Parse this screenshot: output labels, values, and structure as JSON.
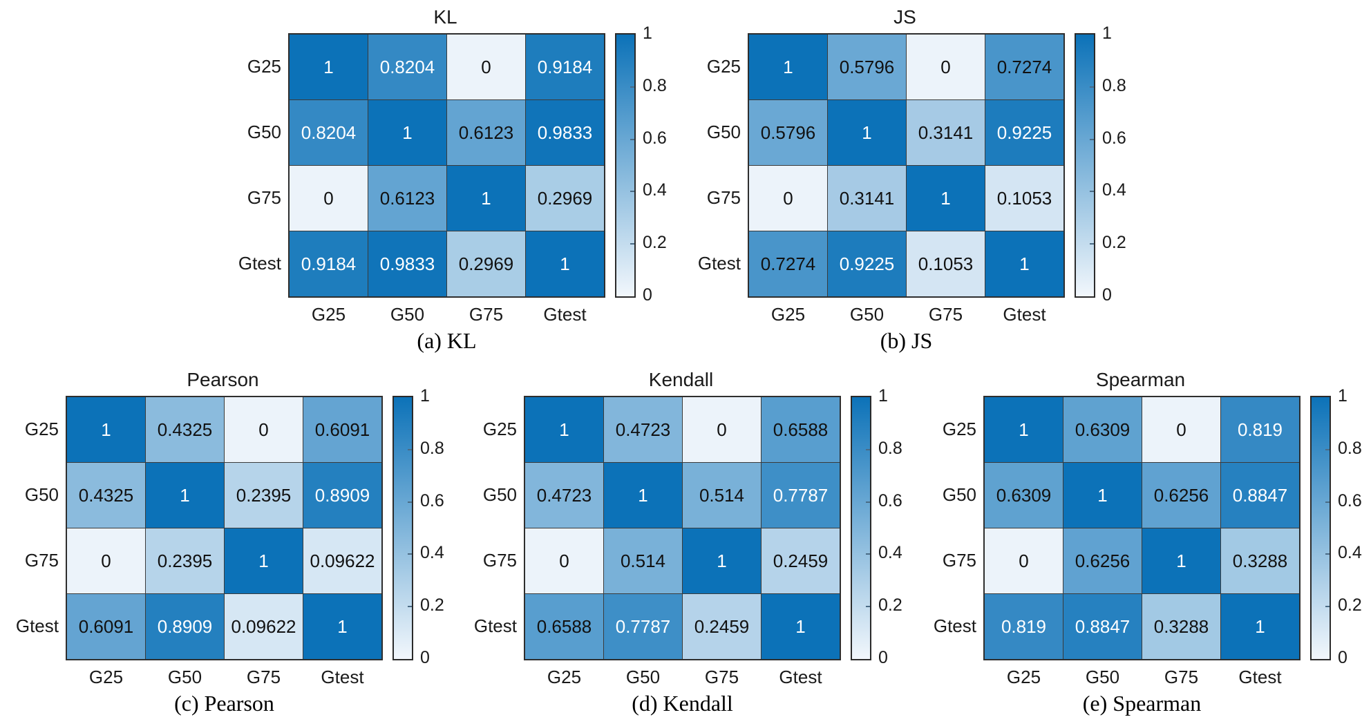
{
  "figure": {
    "background": "#ffffff",
    "description": "Five 4x4 similarity heatmaps comparing distributions G25, G50, G75, Gtest"
  },
  "colors": {
    "cmap_high": "#0c72b8",
    "cmap_low": "#ecf3fa",
    "grid_line": "#2e2e2e",
    "cell_text_dark": "#111111",
    "cell_text_light": "#ffffff",
    "label_text": "#1a1a1a"
  },
  "colorbar": {
    "min": 0,
    "max": 1,
    "tick_labels": [
      "1",
      "0.8",
      "0.6",
      "0.4",
      "0.2",
      "0"
    ],
    "tick_values": [
      1,
      0.8,
      0.6,
      0.4,
      0.2,
      0
    ],
    "position": "right"
  },
  "categories": [
    "G25",
    "G50",
    "G75",
    "Gtest"
  ],
  "chart_data": [
    {
      "type": "heatmap",
      "title": "KL",
      "caption": "(a) KL",
      "x_categories": [
        "G25",
        "G50",
        "G75",
        "Gtest"
      ],
      "y_categories": [
        "G25",
        "G50",
        "G75",
        "Gtest"
      ],
      "values": [
        [
          1,
          0.8204,
          0,
          0.9184
        ],
        [
          0.8204,
          1,
          0.6123,
          0.9833
        ],
        [
          0,
          0.6123,
          1,
          0.2969
        ],
        [
          0.9184,
          0.9833,
          0.2969,
          1
        ]
      ],
      "value_range": [
        0,
        1
      ],
      "colorbar": "right"
    },
    {
      "type": "heatmap",
      "title": "JS",
      "caption": "(b) JS",
      "x_categories": [
        "G25",
        "G50",
        "G75",
        "Gtest"
      ],
      "y_categories": [
        "G25",
        "G50",
        "G75",
        "Gtest"
      ],
      "values": [
        [
          1,
          0.5796,
          0,
          0.7274
        ],
        [
          0.5796,
          1,
          0.3141,
          0.9225
        ],
        [
          0,
          0.3141,
          1,
          0.1053
        ],
        [
          0.7274,
          0.9225,
          0.1053,
          1
        ]
      ],
      "value_range": [
        0,
        1
      ],
      "colorbar": "right"
    },
    {
      "type": "heatmap",
      "title": "Pearson",
      "caption": "(c) Pearson",
      "x_categories": [
        "G25",
        "G50",
        "G75",
        "Gtest"
      ],
      "y_categories": [
        "G25",
        "G50",
        "G75",
        "Gtest"
      ],
      "values": [
        [
          1,
          0.4325,
          0,
          0.6091
        ],
        [
          0.4325,
          1,
          0.2395,
          0.8909
        ],
        [
          0,
          0.2395,
          1,
          0.09622
        ],
        [
          0.6091,
          0.8909,
          0.09622,
          1
        ]
      ],
      "value_range": [
        0,
        1
      ],
      "colorbar": "right"
    },
    {
      "type": "heatmap",
      "title": "Kendall",
      "caption": "(d) Kendall",
      "x_categories": [
        "G25",
        "G50",
        "G75",
        "Gtest"
      ],
      "y_categories": [
        "G25",
        "G50",
        "G75",
        "Gtest"
      ],
      "values": [
        [
          1,
          0.4723,
          0,
          0.6588
        ],
        [
          0.4723,
          1,
          0.514,
          0.7787
        ],
        [
          0,
          0.514,
          1,
          0.2459
        ],
        [
          0.6588,
          0.7787,
          0.2459,
          1
        ]
      ],
      "value_range": [
        0,
        1
      ],
      "colorbar": "right"
    },
    {
      "type": "heatmap",
      "title": "Spearman",
      "caption": "(e) Spearman",
      "x_categories": [
        "G25",
        "G50",
        "G75",
        "Gtest"
      ],
      "y_categories": [
        "G25",
        "G50",
        "G75",
        "Gtest"
      ],
      "values": [
        [
          1,
          0.6309,
          0,
          0.819
        ],
        [
          0.6309,
          1,
          0.6256,
          0.8847
        ],
        [
          0,
          0.6256,
          1,
          0.3288
        ],
        [
          0.819,
          0.8847,
          0.3288,
          1
        ]
      ],
      "value_range": [
        0,
        1
      ],
      "colorbar": "right"
    }
  ]
}
